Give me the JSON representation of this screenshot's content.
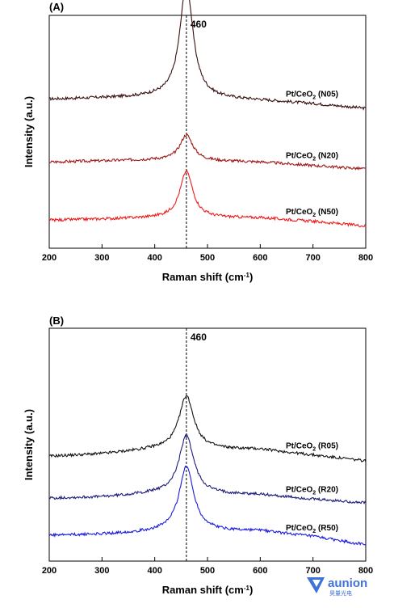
{
  "chart_data": [
    {
      "panel": "(A)",
      "type": "line",
      "xlabel": "Raman shift (cm-1)",
      "ylabel": "Intensity (a.u.)",
      "xlim": [
        200,
        800
      ],
      "xticks": [
        200,
        300,
        400,
        500,
        600,
        700,
        800
      ],
      "y_ticks_shown": false,
      "reference_line": {
        "x": 460,
        "label": "460",
        "style": "dashed"
      },
      "series": [
        {
          "name": "Pt/CeO2 (N05)",
          "color": "#3a0f0f",
          "offset": 0.62,
          "baseline_x": [
            200,
            300,
            400,
            600,
            700,
            800
          ],
          "baseline_y": [
            0.02,
            0.025,
            0.03,
            0.015,
            0.0,
            -0.02
          ],
          "peak_center": 460,
          "peak_height": 0.49,
          "peak_width": 15
        },
        {
          "name": "Pt/CeO2 (N20)",
          "color": "#a01818",
          "offset": 0.37,
          "baseline_x": [
            200,
            300,
            400,
            600,
            700,
            800
          ],
          "baseline_y": [
            0.0,
            0.005,
            0.01,
            0.0,
            -0.015,
            -0.03
          ],
          "peak_center": 460,
          "peak_height": 0.11,
          "peak_width": 15
        },
        {
          "name": "Pt/CeO2 (N50)",
          "color": "#ee1c1c",
          "offset": 0.12,
          "baseline_x": [
            200,
            300,
            400,
            600,
            700,
            800
          ],
          "baseline_y": [
            0.0,
            0.005,
            0.01,
            0.01,
            -0.005,
            -0.025
          ],
          "peak_center": 460,
          "peak_height": 0.2,
          "peak_width": 15
        }
      ]
    },
    {
      "panel": "(B)",
      "type": "line",
      "xlabel": "Raman shift (cm-1)",
      "ylabel": "Intensity (a.u.)",
      "xlim": [
        200,
        800
      ],
      "xticks": [
        200,
        300,
        400,
        500,
        600,
        700,
        800
      ],
      "y_ticks_shown": false,
      "reference_line": {
        "x": 460,
        "label": "460",
        "style": "dashed"
      },
      "series": [
        {
          "name": "Pt/CeO2 (R05)",
          "color": "#111111",
          "offset": 0.45,
          "baseline_x": [
            200,
            300,
            400,
            600,
            700,
            800
          ],
          "baseline_y": [
            0.0,
            0.01,
            0.03,
            0.03,
            0.005,
            -0.02
          ],
          "peak_center": 460,
          "peak_height": 0.23,
          "peak_width": 17
        },
        {
          "name": "Pt/CeO2 (R20)",
          "color": "#1c1c7a",
          "offset": 0.27,
          "baseline_x": [
            200,
            300,
            400,
            600,
            700,
            800
          ],
          "baseline_y": [
            0.0,
            0.005,
            0.02,
            0.015,
            -0.005,
            -0.02
          ],
          "peak_center": 460,
          "peak_height": 0.25,
          "peak_width": 17
        },
        {
          "name": "Pt/CeO2 (R50)",
          "color": "#1a1ae0",
          "offset": 0.11,
          "baseline_x": [
            200,
            300,
            400,
            600,
            700,
            800
          ],
          "baseline_y": [
            0.0,
            0.005,
            0.015,
            0.02,
            -0.005,
            -0.04
          ],
          "peak_center": 460,
          "peak_height": 0.28,
          "peak_width": 17
        }
      ]
    }
  ],
  "watermark": {
    "brand": "aunion",
    "sub": "昊量光电",
    "color": "#3f74d6"
  }
}
